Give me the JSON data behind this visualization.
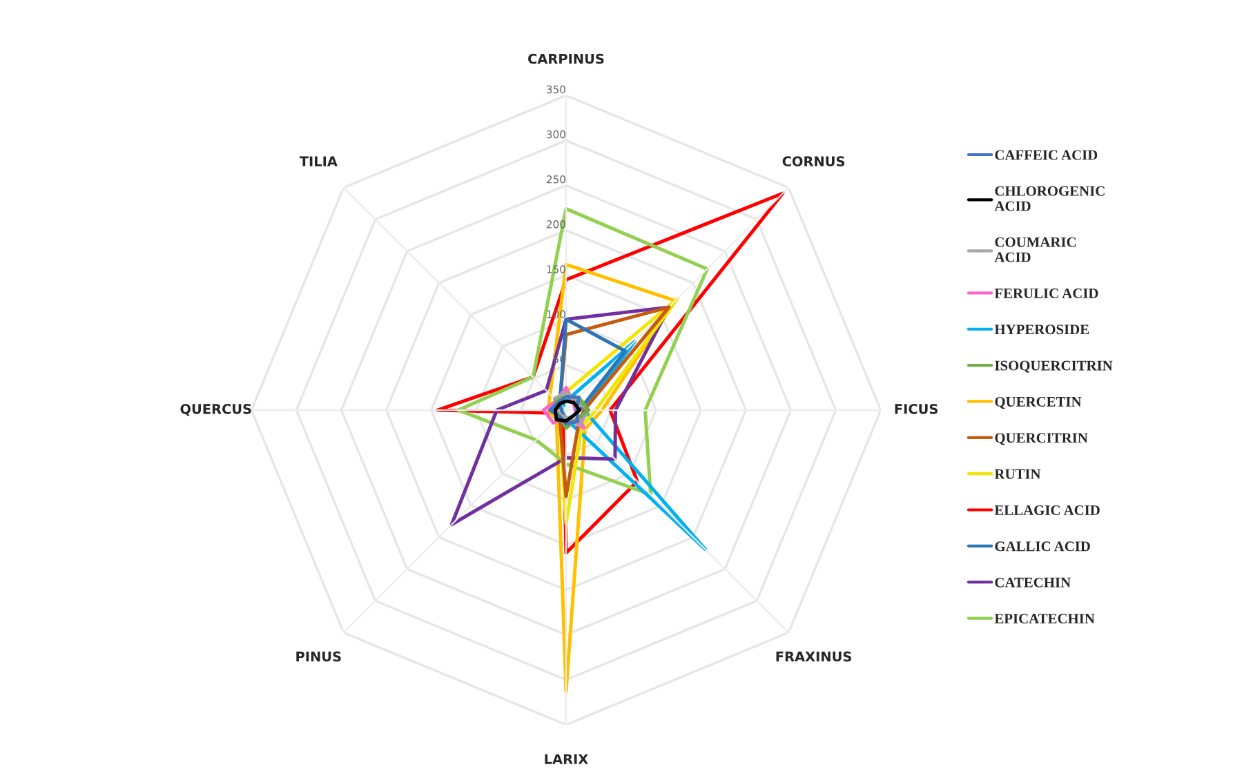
{
  "chart_data": {
    "type": "radar",
    "categories": [
      "CARPINUS",
      "CORNUS",
      "FICUS",
      "FRAXINUS",
      "LARIX",
      "PINUS",
      "QUERCUS",
      "TILIA"
    ],
    "ylim": [
      0,
      350
    ],
    "yticks": [
      50,
      100,
      150,
      200,
      250,
      300,
      350
    ],
    "grid": true,
    "legend": "right",
    "marker": "none",
    "line_style": "solid",
    "series": [
      {
        "name": "CAFFEIC ACID",
        "color": "#4472c4",
        "values": [
          15,
          20,
          12,
          18,
          15,
          10,
          18,
          12
        ]
      },
      {
        "name": "CHLOROGENIC ACID",
        "color": "#000000",
        "values": [
          10,
          12,
          15,
          10,
          12,
          15,
          12,
          10
        ]
      },
      {
        "name": "COUMARIC ACID",
        "color": "#a5a5a5",
        "values": [
          20,
          15,
          25,
          22,
          8,
          8,
          10,
          18
        ]
      },
      {
        "name": "FERULIC ACID",
        "color": "#ff66cc",
        "values": [
          25,
          12,
          10,
          28,
          8,
          20,
          25,
          15
        ]
      },
      {
        "name": "HYPEROSIDE",
        "color": "#00b0f0",
        "values": [
          10,
          108,
          20,
          219,
          10,
          5,
          5,
          5
        ]
      },
      {
        "name": "ISOQUERCITRIN",
        "color": "#70ad47",
        "values": [
          15,
          20,
          25,
          15,
          20,
          10,
          15,
          15
        ]
      },
      {
        "name": "QUERCETIN",
        "color": "#ffc000",
        "values": [
          162,
          172,
          40,
          30,
          313,
          15,
          20,
          25
        ]
      },
      {
        "name": "QUERCITRIN",
        "color": "#c55a11",
        "values": [
          84,
          162,
          20,
          20,
          96,
          10,
          10,
          10
        ]
      },
      {
        "name": "RUTIN",
        "color": "#f2e600",
        "values": [
          20,
          175,
          33,
          25,
          126,
          10,
          10,
          10
        ]
      },
      {
        "name": "ELLAGIC ACID",
        "color": "#ff0000",
        "values": [
          145,
          341,
          49,
          112,
          159,
          5,
          143,
          52
        ]
      },
      {
        "name": "GALLIC ACID",
        "color": "#2e75b6",
        "values": [
          101,
          93,
          15,
          10,
          10,
          5,
          5,
          10
        ]
      },
      {
        "name": "CATECHIN",
        "color": "#7030a0",
        "values": [
          101,
          162,
          55,
          77,
          53,
          180,
          77,
          31
        ]
      },
      {
        "name": "EPICATECHIN",
        "color": "#92d050",
        "values": [
          224,
          222,
          88,
          133,
          60,
          47,
          120,
          52
        ]
      }
    ]
  }
}
